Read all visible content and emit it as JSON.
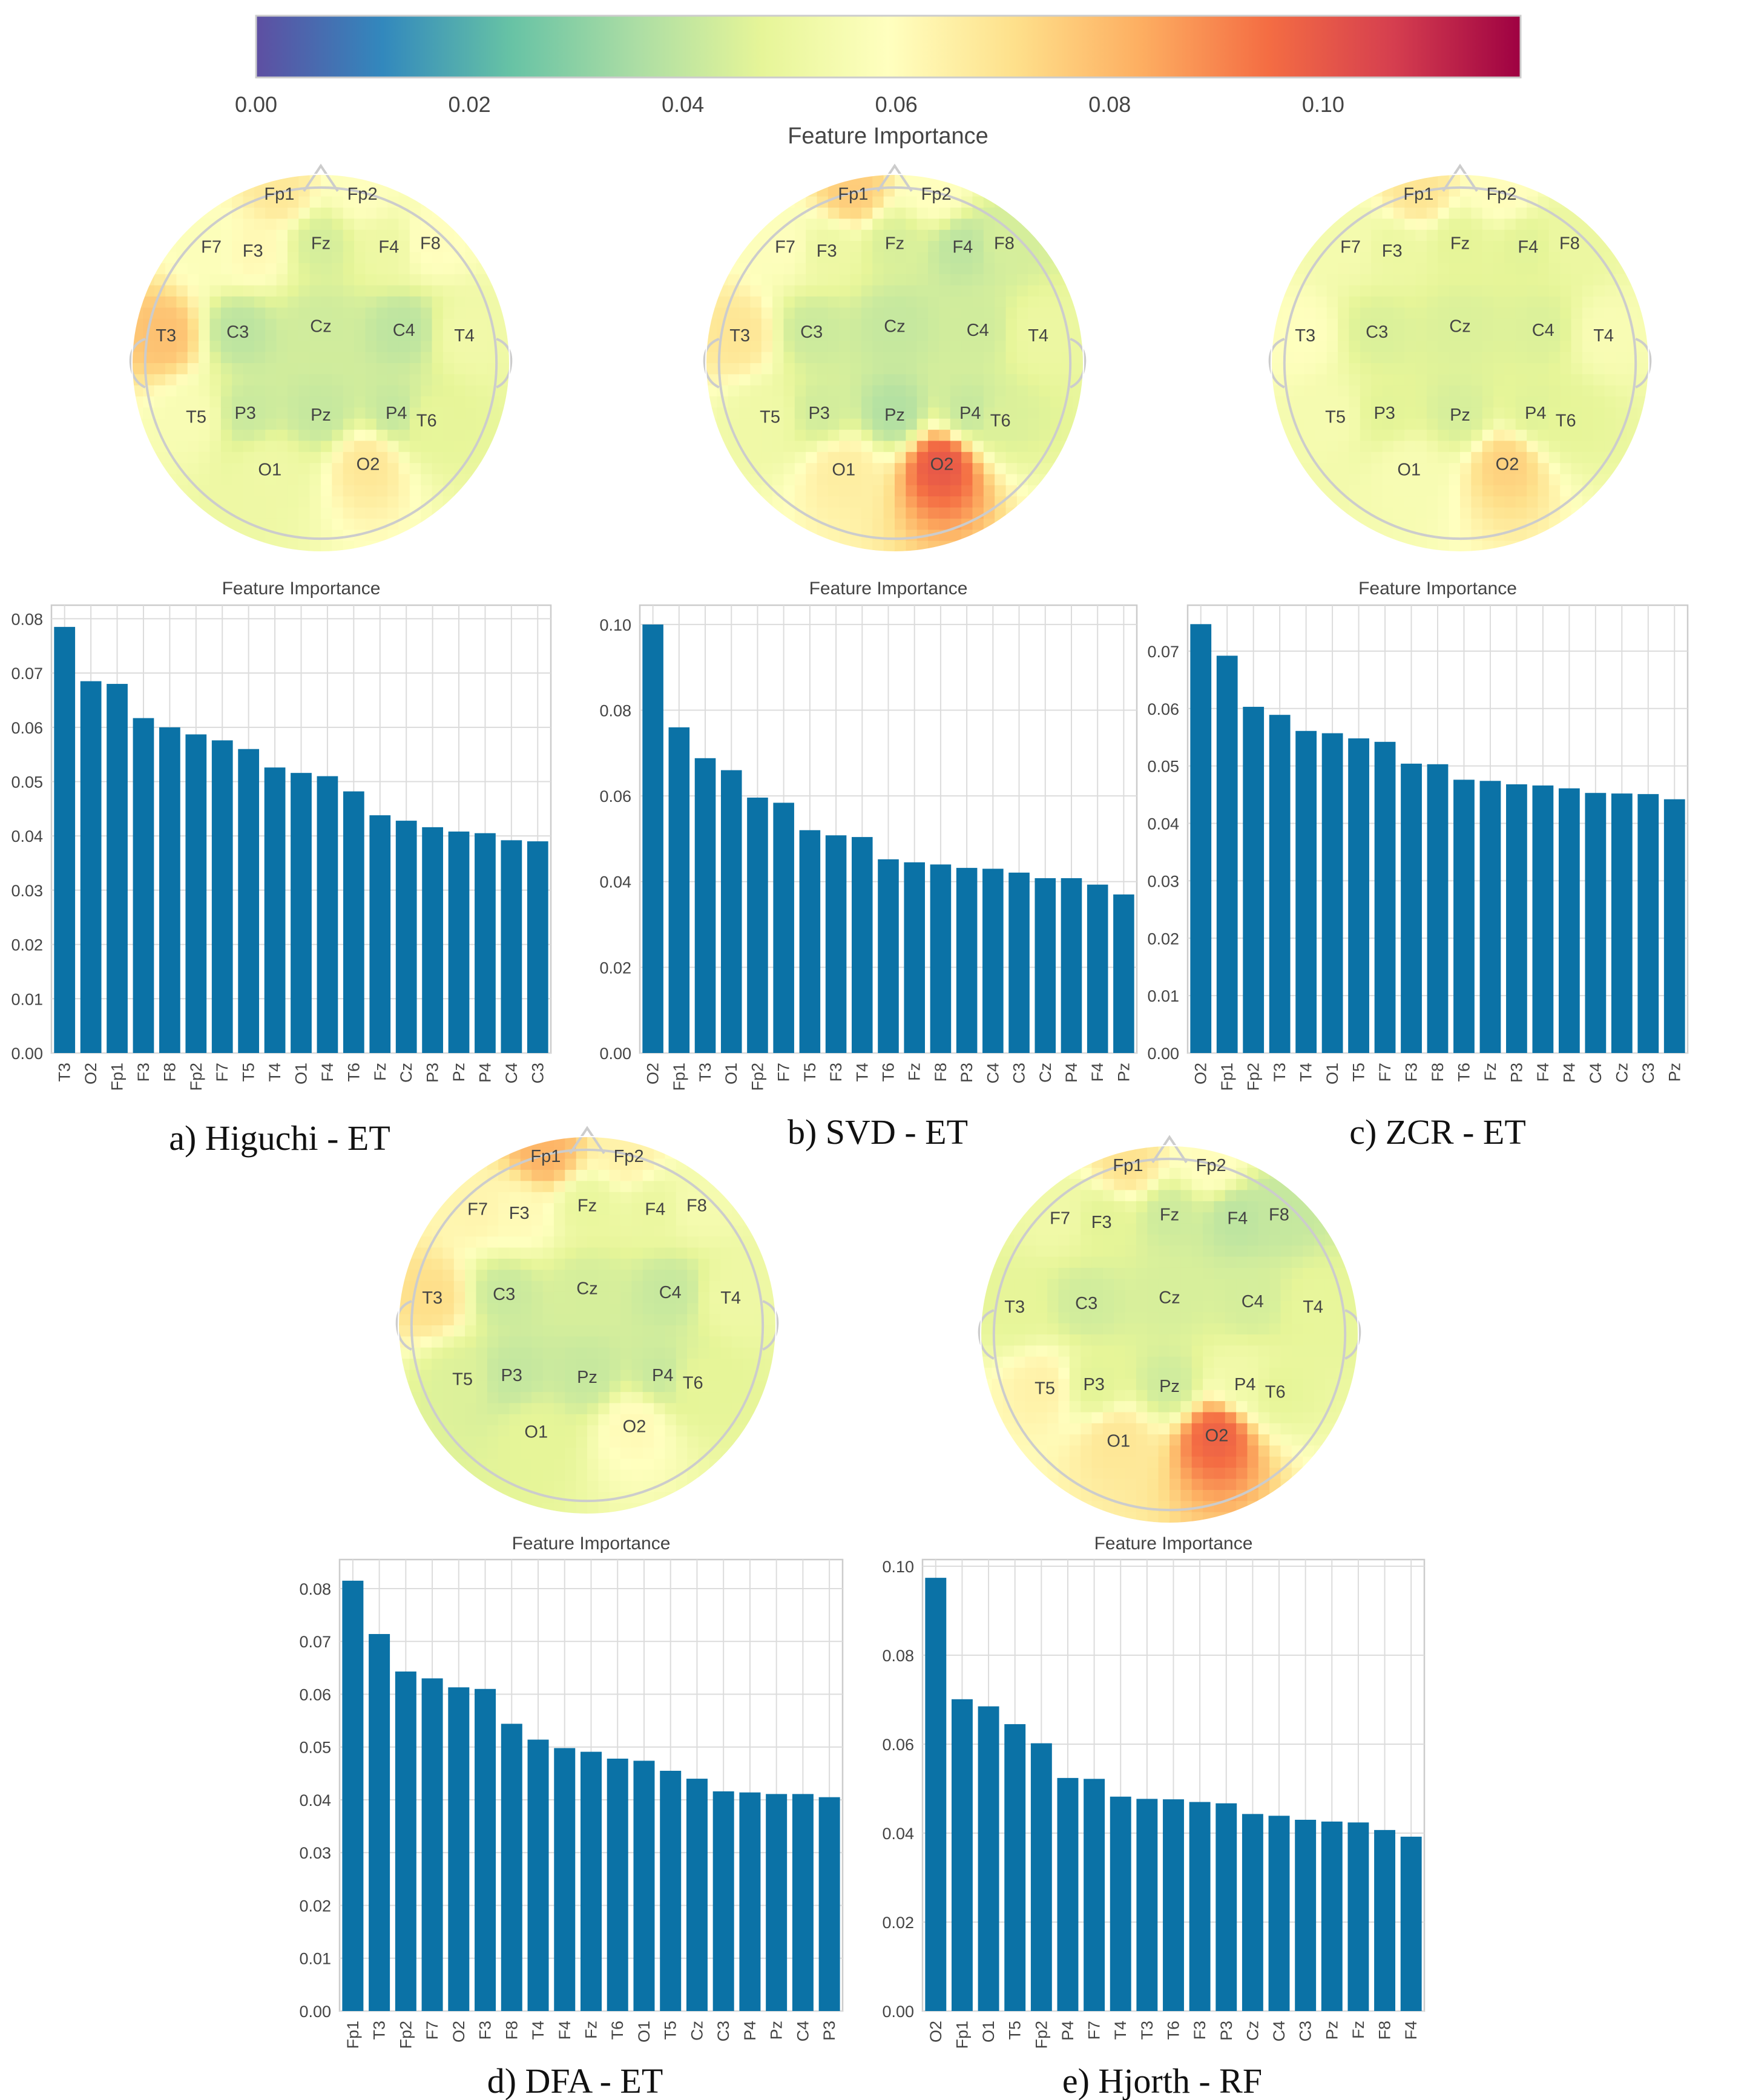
{
  "colorbar": {
    "ticks": [
      "0.00",
      "0.02",
      "0.04",
      "0.06",
      "0.08",
      "0.10"
    ],
    "label": "Feature Importance",
    "colors": [
      "#5e4fa2",
      "#3288bd",
      "#66c2a5",
      "#abdda4",
      "#e6f598",
      "#ffffbf",
      "#fee08b",
      "#fdae61",
      "#f46d43",
      "#d53e4f",
      "#9e0142"
    ]
  },
  "bar_color": "#0b72a6",
  "chart_data": [
    {
      "type": "bar",
      "title": "Feature Importance",
      "caption": "a) Higuchi - ET",
      "categories": [
        "T3",
        "O2",
        "Fp1",
        "F3",
        "F8",
        "Fp2",
        "F7",
        "T5",
        "T4",
        "O1",
        "F4",
        "T6",
        "Fz",
        "Cz",
        "P3",
        "Pz",
        "P4",
        "C4",
        "C3"
      ],
      "values": [
        0.0785,
        0.0685,
        0.068,
        0.0617,
        0.06,
        0.0587,
        0.0576,
        0.056,
        0.0526,
        0.0516,
        0.051,
        0.0482,
        0.0438,
        0.0428,
        0.0416,
        0.0408,
        0.0405,
        0.0392,
        0.039
      ],
      "yticks": [
        "0.00",
        "0.01",
        "0.02",
        "0.03",
        "0.04",
        "0.05",
        "0.06",
        "0.07",
        "0.08"
      ],
      "ylim": [
        0,
        0.0825
      ],
      "xlabel": "",
      "ylabel": ""
    },
    {
      "type": "bar",
      "title": "Feature Importance",
      "caption": "b) SVD - ET",
      "categories": [
        "O2",
        "Fp1",
        "T3",
        "O1",
        "Fp2",
        "F7",
        "T5",
        "F3",
        "T4",
        "T6",
        "Fz",
        "F8",
        "P3",
        "C4",
        "C3",
        "Cz",
        "P4",
        "F4",
        "Pz"
      ],
      "values": [
        0.1,
        0.076,
        0.0688,
        0.066,
        0.0596,
        0.0584,
        0.052,
        0.0508,
        0.0504,
        0.0452,
        0.0445,
        0.044,
        0.0432,
        0.043,
        0.0421,
        0.0408,
        0.0408,
        0.0393,
        0.037
      ],
      "yticks": [
        "0.00",
        "0.02",
        "0.04",
        "0.06",
        "0.08",
        "0.10"
      ],
      "ylim": [
        0,
        0.1045
      ],
      "xlabel": "",
      "ylabel": ""
    },
    {
      "type": "bar",
      "title": "Feature Importance",
      "caption": "c) ZCR - ET",
      "categories": [
        "O2",
        "Fp1",
        "Fp2",
        "T3",
        "T4",
        "O1",
        "T5",
        "F7",
        "F3",
        "F8",
        "T6",
        "Fz",
        "P3",
        "F4",
        "P4",
        "C4",
        "Cz",
        "C3",
        "Pz"
      ],
      "values": [
        0.0747,
        0.0692,
        0.0603,
        0.0589,
        0.0561,
        0.0557,
        0.0548,
        0.0542,
        0.0504,
        0.0503,
        0.0476,
        0.0474,
        0.0468,
        0.0466,
        0.0461,
        0.0453,
        0.0452,
        0.0451,
        0.0442
      ],
      "yticks": [
        "0.00",
        "0.01",
        "0.02",
        "0.03",
        "0.04",
        "0.05",
        "0.06",
        "0.07"
      ],
      "ylim": [
        0,
        0.078
      ],
      "xlabel": "",
      "ylabel": ""
    },
    {
      "type": "bar",
      "title": "Feature Importance",
      "caption": "d) DFA - ET",
      "categories": [
        "Fp1",
        "T3",
        "Fp2",
        "F7",
        "O2",
        "F3",
        "F8",
        "T4",
        "F4",
        "Fz",
        "T6",
        "O1",
        "T5",
        "Cz",
        "C3",
        "P4",
        "Pz",
        "C4",
        "P3"
      ],
      "values": [
        0.0815,
        0.0714,
        0.0643,
        0.063,
        0.0613,
        0.061,
        0.0544,
        0.0514,
        0.0498,
        0.0491,
        0.0478,
        0.0474,
        0.0455,
        0.044,
        0.0416,
        0.0414,
        0.0411,
        0.0411,
        0.0405
      ],
      "yticks": [
        "0.00",
        "0.01",
        "0.02",
        "0.03",
        "0.04",
        "0.05",
        "0.06",
        "0.07",
        "0.08"
      ],
      "ylim": [
        0,
        0.0855
      ],
      "xlabel": "",
      "ylabel": ""
    },
    {
      "type": "bar",
      "title": "Feature Importance",
      "caption": "e) Hjorth - RF",
      "categories": [
        "O2",
        "Fp1",
        "O1",
        "T5",
        "Fp2",
        "P4",
        "F7",
        "T4",
        "T3",
        "T6",
        "F3",
        "P3",
        "Cz",
        "C4",
        "C3",
        "Pz",
        "Fz",
        "F8",
        "F4"
      ],
      "values": [
        0.0974,
        0.0701,
        0.0685,
        0.0645,
        0.0602,
        0.0524,
        0.0522,
        0.0482,
        0.0477,
        0.0476,
        0.047,
        0.0467,
        0.0443,
        0.0439,
        0.043,
        0.0426,
        0.0424,
        0.0407,
        0.0392
      ],
      "yticks": [
        "0.00",
        "0.02",
        "0.04",
        "0.06",
        "0.08",
        "0.10"
      ],
      "ylim": [
        0,
        0.1015
      ],
      "xlabel": "",
      "ylabel": ""
    }
  ],
  "topomaps": [
    {
      "channels": [
        {
          "label": "Fp1",
          "value": 0.068
        },
        {
          "label": "Fp2",
          "value": 0.0587
        },
        {
          "label": "F7",
          "value": 0.0576
        },
        {
          "label": "F3",
          "value": 0.0617
        },
        {
          "label": "Fz",
          "value": 0.0438
        },
        {
          "label": "F4",
          "value": 0.051
        },
        {
          "label": "F8",
          "value": 0.06
        },
        {
          "label": "T3",
          "value": 0.0785
        },
        {
          "label": "C3",
          "value": 0.039
        },
        {
          "label": "Cz",
          "value": 0.0428
        },
        {
          "label": "C4",
          "value": 0.0392
        },
        {
          "label": "T4",
          "value": 0.0526
        },
        {
          "label": "T5",
          "value": 0.056
        },
        {
          "label": "P3",
          "value": 0.0416
        },
        {
          "label": "Pz",
          "value": 0.0408
        },
        {
          "label": "P4",
          "value": 0.0405
        },
        {
          "label": "T6",
          "value": 0.0482
        },
        {
          "label": "O1",
          "value": 0.0516
        },
        {
          "label": "O2",
          "value": 0.0685
        }
      ]
    },
    {
      "channels": [
        {
          "label": "Fp1",
          "value": 0.076
        },
        {
          "label": "Fp2",
          "value": 0.0596
        },
        {
          "label": "F7",
          "value": 0.0584
        },
        {
          "label": "F3",
          "value": 0.0508
        },
        {
          "label": "Fz",
          "value": 0.0445
        },
        {
          "label": "F4",
          "value": 0.0393
        },
        {
          "label": "F8",
          "value": 0.044
        },
        {
          "label": "T3",
          "value": 0.0688
        },
        {
          "label": "C3",
          "value": 0.0421
        },
        {
          "label": "Cz",
          "value": 0.0408
        },
        {
          "label": "C4",
          "value": 0.043
        },
        {
          "label": "T4",
          "value": 0.0504
        },
        {
          "label": "T5",
          "value": 0.052
        },
        {
          "label": "P3",
          "value": 0.0432
        },
        {
          "label": "Pz",
          "value": 0.037
        },
        {
          "label": "P4",
          "value": 0.0408
        },
        {
          "label": "T6",
          "value": 0.0452
        },
        {
          "label": "O1",
          "value": 0.066
        },
        {
          "label": "O2",
          "value": 0.1
        }
      ]
    },
    {
      "channels": [
        {
          "label": "Fp1",
          "value": 0.0692
        },
        {
          "label": "Fp2",
          "value": 0.0603
        },
        {
          "label": "F7",
          "value": 0.0542
        },
        {
          "label": "F3",
          "value": 0.0504
        },
        {
          "label": "Fz",
          "value": 0.0474
        },
        {
          "label": "F4",
          "value": 0.0466
        },
        {
          "label": "F8",
          "value": 0.0503
        },
        {
          "label": "T3",
          "value": 0.0589
        },
        {
          "label": "C3",
          "value": 0.0451
        },
        {
          "label": "Cz",
          "value": 0.0452
        },
        {
          "label": "C4",
          "value": 0.0453
        },
        {
          "label": "T4",
          "value": 0.0561
        },
        {
          "label": "T5",
          "value": 0.0548
        },
        {
          "label": "P3",
          "value": 0.0468
        },
        {
          "label": "Pz",
          "value": 0.0442
        },
        {
          "label": "P4",
          "value": 0.0461
        },
        {
          "label": "T6",
          "value": 0.0476
        },
        {
          "label": "O1",
          "value": 0.0557
        },
        {
          "label": "O2",
          "value": 0.0747
        }
      ]
    },
    {
      "channels": [
        {
          "label": "Fp1",
          "value": 0.0815
        },
        {
          "label": "Fp2",
          "value": 0.0643
        },
        {
          "label": "F7",
          "value": 0.063
        },
        {
          "label": "F3",
          "value": 0.061
        },
        {
          "label": "Fz",
          "value": 0.0491
        },
        {
          "label": "F4",
          "value": 0.0498
        },
        {
          "label": "F8",
          "value": 0.0544
        },
        {
          "label": "T3",
          "value": 0.0714
        },
        {
          "label": "C3",
          "value": 0.0416
        },
        {
          "label": "Cz",
          "value": 0.044
        },
        {
          "label": "C4",
          "value": 0.0411
        },
        {
          "label": "T4",
          "value": 0.0514
        },
        {
          "label": "T5",
          "value": 0.0455
        },
        {
          "label": "P3",
          "value": 0.0405
        },
        {
          "label": "Pz",
          "value": 0.0411
        },
        {
          "label": "P4",
          "value": 0.0414
        },
        {
          "label": "T6",
          "value": 0.0478
        },
        {
          "label": "O1",
          "value": 0.0474
        },
        {
          "label": "O2",
          "value": 0.0613
        }
      ]
    },
    {
      "channels": [
        {
          "label": "Fp1",
          "value": 0.0701
        },
        {
          "label": "Fp2",
          "value": 0.0602
        },
        {
          "label": "F7",
          "value": 0.0522
        },
        {
          "label": "F3",
          "value": 0.047
        },
        {
          "label": "Fz",
          "value": 0.0424
        },
        {
          "label": "F4",
          "value": 0.0392
        },
        {
          "label": "F8",
          "value": 0.0407
        },
        {
          "label": "T3",
          "value": 0.0477
        },
        {
          "label": "C3",
          "value": 0.043
        },
        {
          "label": "Cz",
          "value": 0.0443
        },
        {
          "label": "C4",
          "value": 0.0439
        },
        {
          "label": "T4",
          "value": 0.0482
        },
        {
          "label": "T5",
          "value": 0.0645
        },
        {
          "label": "P3",
          "value": 0.0467
        },
        {
          "label": "Pz",
          "value": 0.0426
        },
        {
          "label": "P4",
          "value": 0.0524
        },
        {
          "label": "T6",
          "value": 0.0476
        },
        {
          "label": "O1",
          "value": 0.0685
        },
        {
          "label": "O2",
          "value": 0.0974
        }
      ]
    }
  ]
}
